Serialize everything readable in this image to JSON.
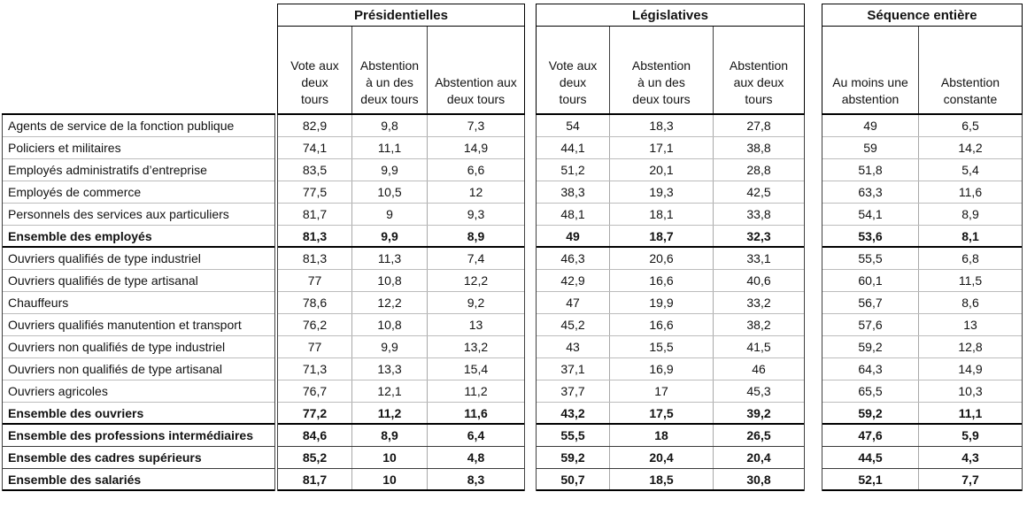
{
  "colors": {
    "text": "#121212",
    "gridline_light": "#bcbcbc",
    "gridline_dark": "#000000"
  },
  "chart_data": {
    "type": "table",
    "decimal_separator": ",",
    "row_label_header": "",
    "col_groups": [
      {
        "title": "Présidentielles",
        "columns": [
          "Vote aux\ndeux\ntours",
          "Abstention\nà un des\ndeux tours",
          "Abstention aux\ndeux tours"
        ]
      },
      {
        "title": "Législatives",
        "columns": [
          "Vote aux\ndeux\ntours",
          "Abstention\nà un des\ndeux tours",
          "Abstention\naux deux\ntours"
        ]
      },
      {
        "title": "Séquence entière",
        "columns": [
          "Au moins une\nabstention",
          "Abstention\nconstante"
        ]
      }
    ],
    "rows": [
      {
        "label": "Agents de service de la fonction publique",
        "bold": false,
        "bottom": "light",
        "values": [
          "82,9",
          "9,8",
          "7,3",
          "54",
          "18,3",
          "27,8",
          "49",
          "6,5"
        ]
      },
      {
        "label": "Policiers et militaires",
        "bold": false,
        "bottom": "light",
        "values": [
          "74,1",
          "11,1",
          "14,9",
          "44,1",
          "17,1",
          "38,8",
          "59",
          "14,2"
        ]
      },
      {
        "label": "Employés administratifs d’entreprise",
        "bold": false,
        "bottom": "light",
        "values": [
          "83,5",
          "9,9",
          "6,6",
          "51,2",
          "20,1",
          "28,8",
          "51,8",
          "5,4"
        ]
      },
      {
        "label": "Employés de commerce",
        "bold": false,
        "bottom": "light",
        "values": [
          "77,5",
          "10,5",
          "12",
          "38,3",
          "19,3",
          "42,5",
          "63,3",
          "11,6"
        ]
      },
      {
        "label": "Personnels des services aux particuliers",
        "bold": false,
        "bottom": "light",
        "values": [
          "81,7",
          "9",
          "9,3",
          "48,1",
          "18,1",
          "33,8",
          "54,1",
          "8,9"
        ]
      },
      {
        "label": "Ensemble des employés",
        "bold": true,
        "bottom": "thick",
        "values": [
          "81,3",
          "9,9",
          "8,9",
          "49",
          "18,7",
          "32,3",
          "53,6",
          "8,1"
        ]
      },
      {
        "label": "Ouvriers qualifiés de type industriel",
        "bold": false,
        "bottom": "light",
        "values": [
          "81,3",
          "11,3",
          "7,4",
          "46,3",
          "20,6",
          "33,1",
          "55,5",
          "6,8"
        ]
      },
      {
        "label": "Ouvriers qualifiés de type artisanal",
        "bold": false,
        "bottom": "light",
        "values": [
          "77",
          "10,8",
          "12,2",
          "42,9",
          "16,6",
          "40,6",
          "60,1",
          "11,5"
        ]
      },
      {
        "label": "Chauffeurs",
        "bold": false,
        "bottom": "light",
        "values": [
          "78,6",
          "12,2",
          "9,2",
          "47",
          "19,9",
          "33,2",
          "56,7",
          "8,6"
        ]
      },
      {
        "label": "Ouvriers qualifiés manutention et transport",
        "bold": false,
        "bottom": "light",
        "values": [
          "76,2",
          "10,8",
          "13",
          "45,2",
          "16,6",
          "38,2",
          "57,6",
          "13"
        ]
      },
      {
        "label": "Ouvriers non qualifiés de type industriel",
        "bold": false,
        "bottom": "light",
        "values": [
          "77",
          "9,9",
          "13,2",
          "43",
          "15,5",
          "41,5",
          "59,2",
          "12,8"
        ]
      },
      {
        "label": "Ouvriers non qualifiés de type artisanal",
        "bold": false,
        "bottom": "light",
        "values": [
          "71,3",
          "13,3",
          "15,4",
          "37,1",
          "16,9",
          "46",
          "64,3",
          "14,9"
        ]
      },
      {
        "label": "Ouvriers agricoles",
        "bold": false,
        "bottom": "light",
        "values": [
          "76,7",
          "12,1",
          "11,2",
          "37,7",
          "17",
          "45,3",
          "65,5",
          "10,3"
        ]
      },
      {
        "label": "Ensemble des ouvriers",
        "bold": true,
        "bottom": "thick",
        "values": [
          "77,2",
          "11,2",
          "11,6",
          "43,2",
          "17,5",
          "39,2",
          "59,2",
          "11,1"
        ]
      },
      {
        "label": "Ensemble des professions intermédiaires",
        "bold": true,
        "bottom": "dark",
        "values": [
          "84,6",
          "8,9",
          "6,4",
          "55,5",
          "18",
          "26,5",
          "47,6",
          "5,9"
        ]
      },
      {
        "label": "Ensemble des cadres supérieurs",
        "bold": true,
        "bottom": "dark",
        "values": [
          "85,2",
          "10",
          "4,8",
          "59,2",
          "20,4",
          "20,4",
          "44,5",
          "4,3"
        ]
      },
      {
        "label": "Ensemble des salariés",
        "bold": true,
        "bottom": "thick",
        "values": [
          "81,7",
          "10",
          "8,3",
          "50,7",
          "18,5",
          "30,8",
          "52,1",
          "7,7"
        ]
      }
    ]
  }
}
